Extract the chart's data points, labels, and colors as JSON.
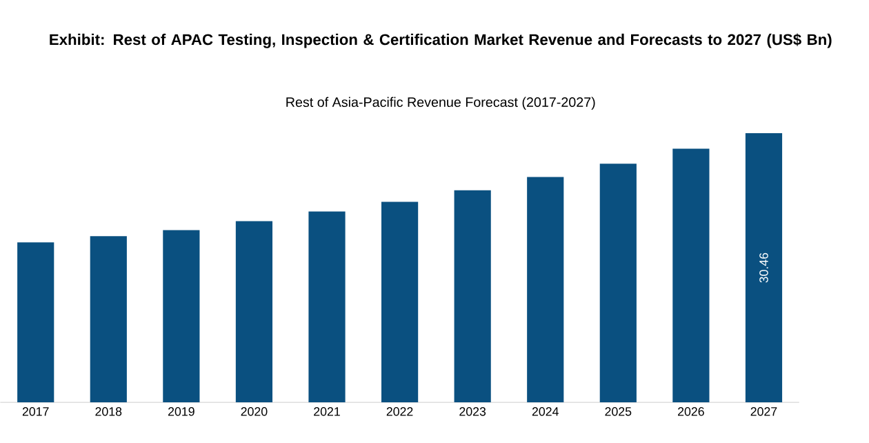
{
  "chart_data": {
    "type": "bar",
    "title": "Exhibit: Rest of APAC Testing, Inspection & Certification Market Revenue and Forecasts to 2027 (US$ Bn)",
    "subtitle": "Rest of Asia-Pacific Revenue Forecast (2017-2027)",
    "categories": [
      "2017",
      "2018",
      "2019",
      "2020",
      "2021",
      "2022",
      "2023",
      "2024",
      "2025",
      "2026",
      "2027"
    ],
    "values": [
      18.1,
      18.8,
      19.5,
      20.5,
      21.6,
      22.7,
      24.0,
      25.5,
      27.0,
      28.7,
      30.46
    ],
    "value_labels": [
      null,
      null,
      null,
      null,
      null,
      null,
      null,
      null,
      null,
      null,
      "30.46"
    ],
    "ylim": [
      0,
      30.46
    ],
    "color": "#0a5080"
  }
}
